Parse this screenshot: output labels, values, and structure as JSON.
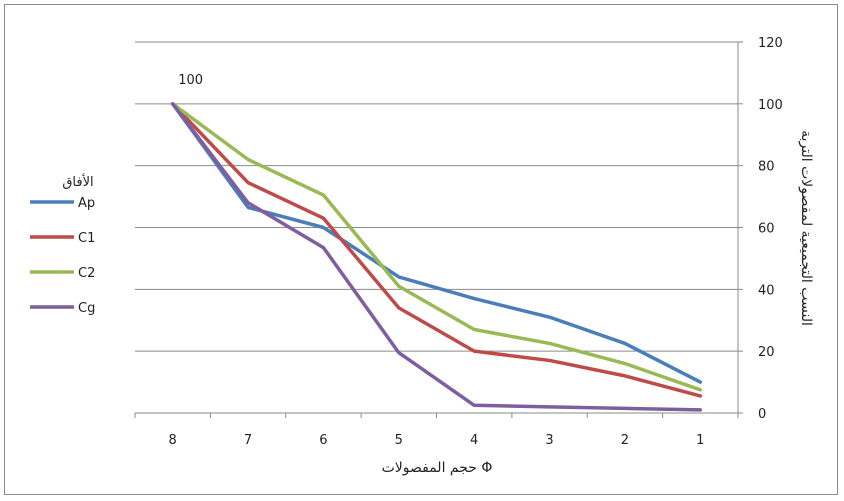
{
  "chart_data": {
    "type": "line",
    "title": "",
    "xlabel": "حجم المفصولات Φ",
    "ylabel": "النسب التجميعية لمفصولات التربة",
    "categories": [
      "8",
      "7",
      "6",
      "5",
      "4",
      "3",
      "2",
      "1"
    ],
    "ylim": [
      0,
      120
    ],
    "yticks": [
      0,
      20,
      40,
      60,
      80,
      100,
      120
    ],
    "grid": true,
    "y_axis_side": "right",
    "legend_title": "الأفاق",
    "legend_position": "left",
    "annotations": [
      {
        "text": "100",
        "category": "8",
        "value": 100
      }
    ],
    "series": [
      {
        "name": "Ap",
        "color": "#4a7ebb",
        "values": [
          100,
          66.5,
          60,
          44,
          37,
          31,
          22.5,
          10
        ]
      },
      {
        "name": "C1",
        "color": "#be4b48",
        "values": [
          100,
          74.5,
          63,
          34,
          20,
          17,
          12,
          5.5
        ]
      },
      {
        "name": "C2",
        "color": "#98b954",
        "values": [
          100,
          82,
          70.5,
          41,
          27,
          22.5,
          16,
          7.5
        ]
      },
      {
        "name": "Cg",
        "color": "#7d5fa0",
        "values": [
          100,
          68,
          53.5,
          19.5,
          2.5,
          2,
          1.5,
          1
        ]
      }
    ]
  }
}
